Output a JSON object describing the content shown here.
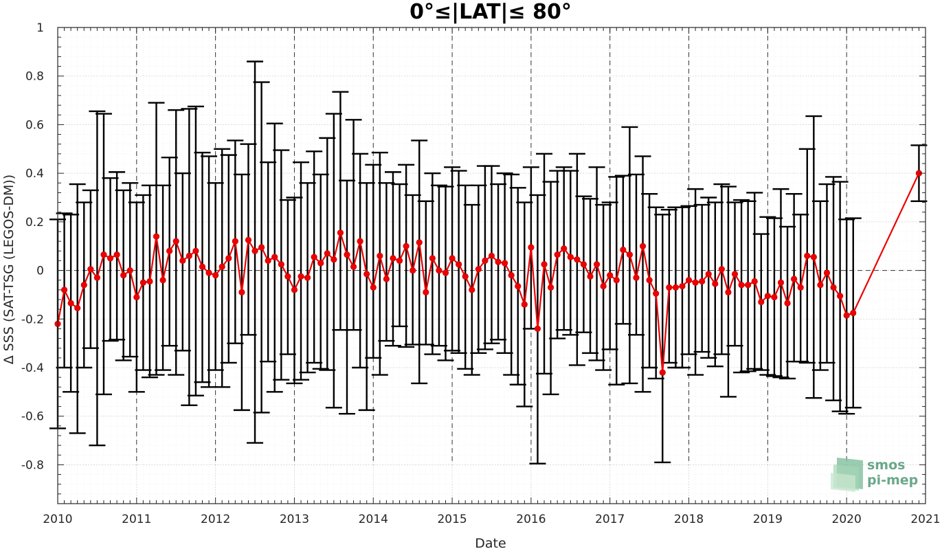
{
  "chart_data": {
    "type": "line",
    "title": "0°≤|LAT|≤ 80°",
    "xlabel": "Date",
    "ylabel": "Δ SSS (SAT-TSG (LEGOS-DM))",
    "xlim": [
      "2010-01",
      "2021-01"
    ],
    "ylim": [
      -0.96,
      1.0
    ],
    "x_ticks": [
      "2010",
      "2011",
      "2012",
      "2013",
      "2014",
      "2015",
      "2016",
      "2017",
      "2018",
      "2019",
      "2020",
      "2021"
    ],
    "y_ticks": [
      "1",
      "0.8",
      "0.6",
      "0.4",
      "0.2",
      "0",
      "-0.2",
      "-0.4",
      "-0.6",
      "-0.8"
    ],
    "grid": true,
    "zero_line": true,
    "year_dividers": true,
    "colors": {
      "series": "#ee0000",
      "errorbar": "#000000",
      "grid": "#dcdcdc"
    },
    "logo": {
      "line1": "smos",
      "line2": "pi-mep"
    },
    "series": [
      {
        "marker": "circle",
        "x": [
          "2010-01",
          "2010-02",
          "2010-03",
          "2010-04",
          "2010-05",
          "2010-06",
          "2010-07",
          "2010-08",
          "2010-09",
          "2010-10",
          "2010-11",
          "2010-12",
          "2011-01",
          "2011-02",
          "2011-03",
          "2011-04",
          "2011-05",
          "2011-06",
          "2011-07",
          "2011-08",
          "2011-09",
          "2011-10",
          "2011-11",
          "2011-12",
          "2012-01",
          "2012-02",
          "2012-03",
          "2012-04",
          "2012-05",
          "2012-06",
          "2012-07",
          "2012-08",
          "2012-09",
          "2012-10",
          "2012-11",
          "2012-12",
          "2013-01",
          "2013-02",
          "2013-03",
          "2013-04",
          "2013-05",
          "2013-06",
          "2013-07",
          "2013-08",
          "2013-09",
          "2013-10",
          "2013-11",
          "2013-12",
          "2014-01",
          "2014-02",
          "2014-03",
          "2014-04",
          "2014-05",
          "2014-06",
          "2014-07",
          "2014-08",
          "2014-09",
          "2014-10",
          "2014-11",
          "2014-12",
          "2015-01",
          "2015-02",
          "2015-03",
          "2015-04",
          "2015-05",
          "2015-06",
          "2015-07",
          "2015-08",
          "2015-09",
          "2015-10",
          "2015-11",
          "2015-12",
          "2016-01",
          "2016-02",
          "2016-03",
          "2016-04",
          "2016-05",
          "2016-06",
          "2016-07",
          "2016-08",
          "2016-09",
          "2016-10",
          "2016-11",
          "2016-12",
          "2017-01",
          "2017-02",
          "2017-03",
          "2017-04",
          "2017-05",
          "2017-06",
          "2017-07",
          "2017-08",
          "2017-09",
          "2017-10",
          "2017-11",
          "2017-12",
          "2018-01",
          "2018-02",
          "2018-03",
          "2018-04",
          "2018-05",
          "2018-06",
          "2018-07",
          "2018-08",
          "2018-09",
          "2018-10",
          "2018-11",
          "2018-12",
          "2019-01",
          "2019-02",
          "2019-03",
          "2019-04",
          "2019-05",
          "2019-06",
          "2019-07",
          "2019-08",
          "2019-09",
          "2019-10",
          "2019-11",
          "2019-12",
          "2020-01",
          "2020-02",
          "2020-12"
        ],
        "y": [
          -0.22,
          -0.08,
          -0.135,
          -0.155,
          -0.06,
          0.005,
          -0.03,
          0.065,
          0.05,
          0.065,
          -0.02,
          0.0,
          -0.11,
          -0.05,
          -0.045,
          0.14,
          -0.04,
          0.08,
          0.12,
          0.04,
          0.06,
          0.08,
          0.015,
          -0.01,
          -0.02,
          0.015,
          0.05,
          0.12,
          -0.09,
          0.125,
          0.08,
          0.095,
          0.04,
          0.055,
          0.025,
          -0.025,
          -0.08,
          -0.025,
          -0.03,
          0.055,
          0.03,
          0.07,
          0.045,
          0.155,
          0.065,
          0.015,
          0.12,
          -0.015,
          -0.07,
          0.06,
          -0.035,
          0.05,
          0.04,
          0.1,
          0.0,
          0.115,
          -0.09,
          0.05,
          0.0,
          -0.01,
          0.05,
          0.025,
          -0.025,
          -0.08,
          0.005,
          0.04,
          0.06,
          0.035,
          0.03,
          -0.02,
          -0.065,
          -0.14,
          0.095,
          -0.24,
          0.025,
          -0.07,
          0.065,
          0.09,
          0.055,
          0.045,
          0.025,
          -0.025,
          0.025,
          -0.065,
          -0.02,
          -0.04,
          0.085,
          0.065,
          -0.03,
          0.1,
          -0.04,
          -0.095,
          -0.42,
          -0.07,
          -0.07,
          -0.065,
          -0.04,
          -0.05,
          -0.045,
          -0.015,
          -0.055,
          0.005,
          -0.09,
          -0.015,
          -0.06,
          -0.06,
          -0.045,
          -0.13,
          -0.105,
          -0.11,
          -0.05,
          -0.135,
          -0.035,
          -0.07,
          0.06,
          0.055,
          -0.06,
          -0.01,
          -0.07,
          -0.105,
          -0.185,
          -0.175,
          0.4
        ],
        "err_low": [
          -0.65,
          -0.4,
          -0.5,
          -0.67,
          -0.4,
          -0.32,
          -0.72,
          -0.51,
          -0.29,
          -0.285,
          -0.37,
          -0.355,
          -0.5,
          -0.41,
          -0.44,
          -0.43,
          -0.41,
          -0.31,
          -0.43,
          -0.33,
          -0.555,
          -0.515,
          -0.46,
          -0.48,
          -0.41,
          -0.48,
          -0.38,
          -0.3,
          -0.575,
          -0.265,
          -0.71,
          -0.585,
          -0.375,
          -0.5,
          -0.45,
          -0.345,
          -0.465,
          -0.45,
          -0.42,
          -0.38,
          -0.405,
          -0.41,
          -0.565,
          -0.245,
          -0.59,
          -0.245,
          -0.4,
          -0.575,
          -0.36,
          -0.43,
          -0.29,
          -0.31,
          -0.23,
          -0.315,
          -0.305,
          -0.465,
          -0.305,
          -0.345,
          -0.31,
          -0.37,
          -0.33,
          -0.34,
          -0.405,
          -0.43,
          -0.34,
          -0.325,
          -0.3,
          -0.285,
          -0.34,
          -0.43,
          -0.47,
          -0.56,
          -0.24,
          -0.795,
          -0.425,
          -0.51,
          -0.28,
          -0.245,
          -0.265,
          -0.39,
          -0.255,
          -0.34,
          -0.37,
          -0.41,
          -0.325,
          -0.47,
          -0.22,
          -0.465,
          -0.265,
          -0.5,
          -0.4,
          -0.445,
          -0.79,
          -0.38,
          -0.4,
          -0.4,
          -0.345,
          -0.43,
          -0.335,
          -0.36,
          -0.395,
          -0.345,
          -0.52,
          -0.31,
          -0.42,
          -0.415,
          -0.405,
          -0.41,
          -0.43,
          -0.435,
          -0.44,
          -0.445,
          -0.375,
          -0.375,
          -0.38,
          -0.525,
          -0.41,
          -0.38,
          -0.535,
          -0.58,
          -0.59,
          -0.565,
          0.285
        ],
        "err_high": [
          0.21,
          0.235,
          0.23,
          0.355,
          0.28,
          0.33,
          0.655,
          0.645,
          0.38,
          0.405,
          0.33,
          0.36,
          0.28,
          0.31,
          0.35,
          0.69,
          0.35,
          0.465,
          0.66,
          0.4,
          0.665,
          0.675,
          0.485,
          0.47,
          0.36,
          0.5,
          0.475,
          0.535,
          0.395,
          0.52,
          0.86,
          0.775,
          0.445,
          0.605,
          0.495,
          0.29,
          0.3,
          0.445,
          0.36,
          0.49,
          0.395,
          0.545,
          0.645,
          0.735,
          0.37,
          0.62,
          0.48,
          0.36,
          0.435,
          0.485,
          0.36,
          0.405,
          0.355,
          0.435,
          0.31,
          0.535,
          0.285,
          0.4,
          0.35,
          0.345,
          0.425,
          0.41,
          0.35,
          0.27,
          0.35,
          0.43,
          0.43,
          0.355,
          0.4,
          0.395,
          0.34,
          0.28,
          0.425,
          0.31,
          0.48,
          0.365,
          0.41,
          0.425,
          0.41,
          0.48,
          0.305,
          0.295,
          0.425,
          0.27,
          0.28,
          0.385,
          0.39,
          0.59,
          0.395,
          0.47,
          0.315,
          0.26,
          0.23,
          0.25,
          0.26,
          0.26,
          0.265,
          0.335,
          0.27,
          0.3,
          0.28,
          0.355,
          0.345,
          0.28,
          0.29,
          0.285,
          0.32,
          0.15,
          0.22,
          0.215,
          0.335,
          0.18,
          0.315,
          0.23,
          0.5,
          0.635,
          0.285,
          0.355,
          0.385,
          0.365,
          0.21,
          0.215,
          0.515
        ]
      }
    ]
  }
}
